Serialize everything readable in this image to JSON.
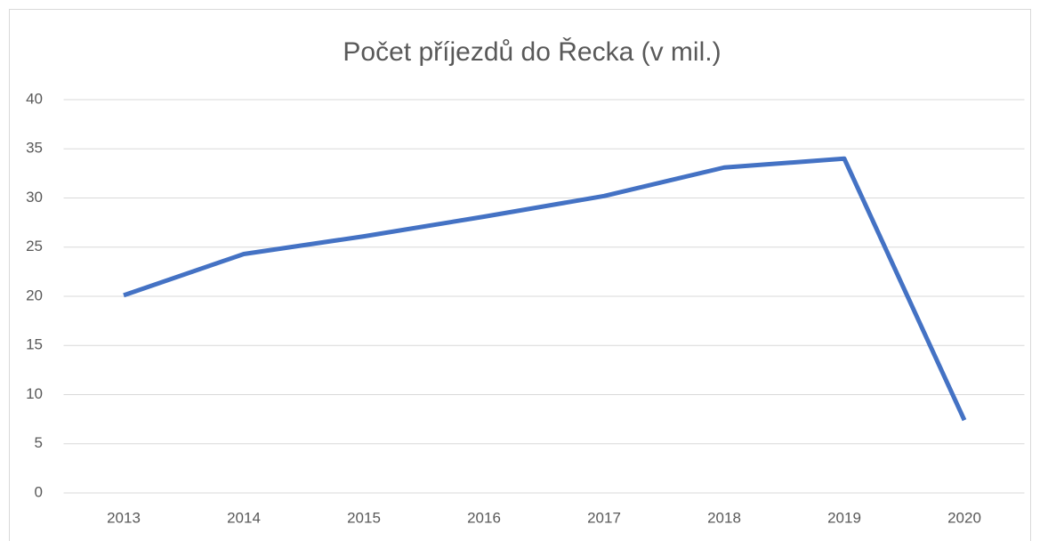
{
  "chart_data": {
    "type": "line",
    "title": "Počet příjezdů do Řecka (v mil.)",
    "categories": [
      "2013",
      "2014",
      "2015",
      "2016",
      "2017",
      "2018",
      "2019",
      "2020"
    ],
    "values": [
      20.1,
      24.3,
      26.1,
      28.1,
      30.2,
      33.1,
      34.0,
      7.4
    ],
    "color": "#4472c4",
    "ylim": [
      0,
      40
    ],
    "yticks": [
      0,
      5,
      10,
      15,
      20,
      25,
      30,
      35,
      40
    ],
    "grid": true
  }
}
